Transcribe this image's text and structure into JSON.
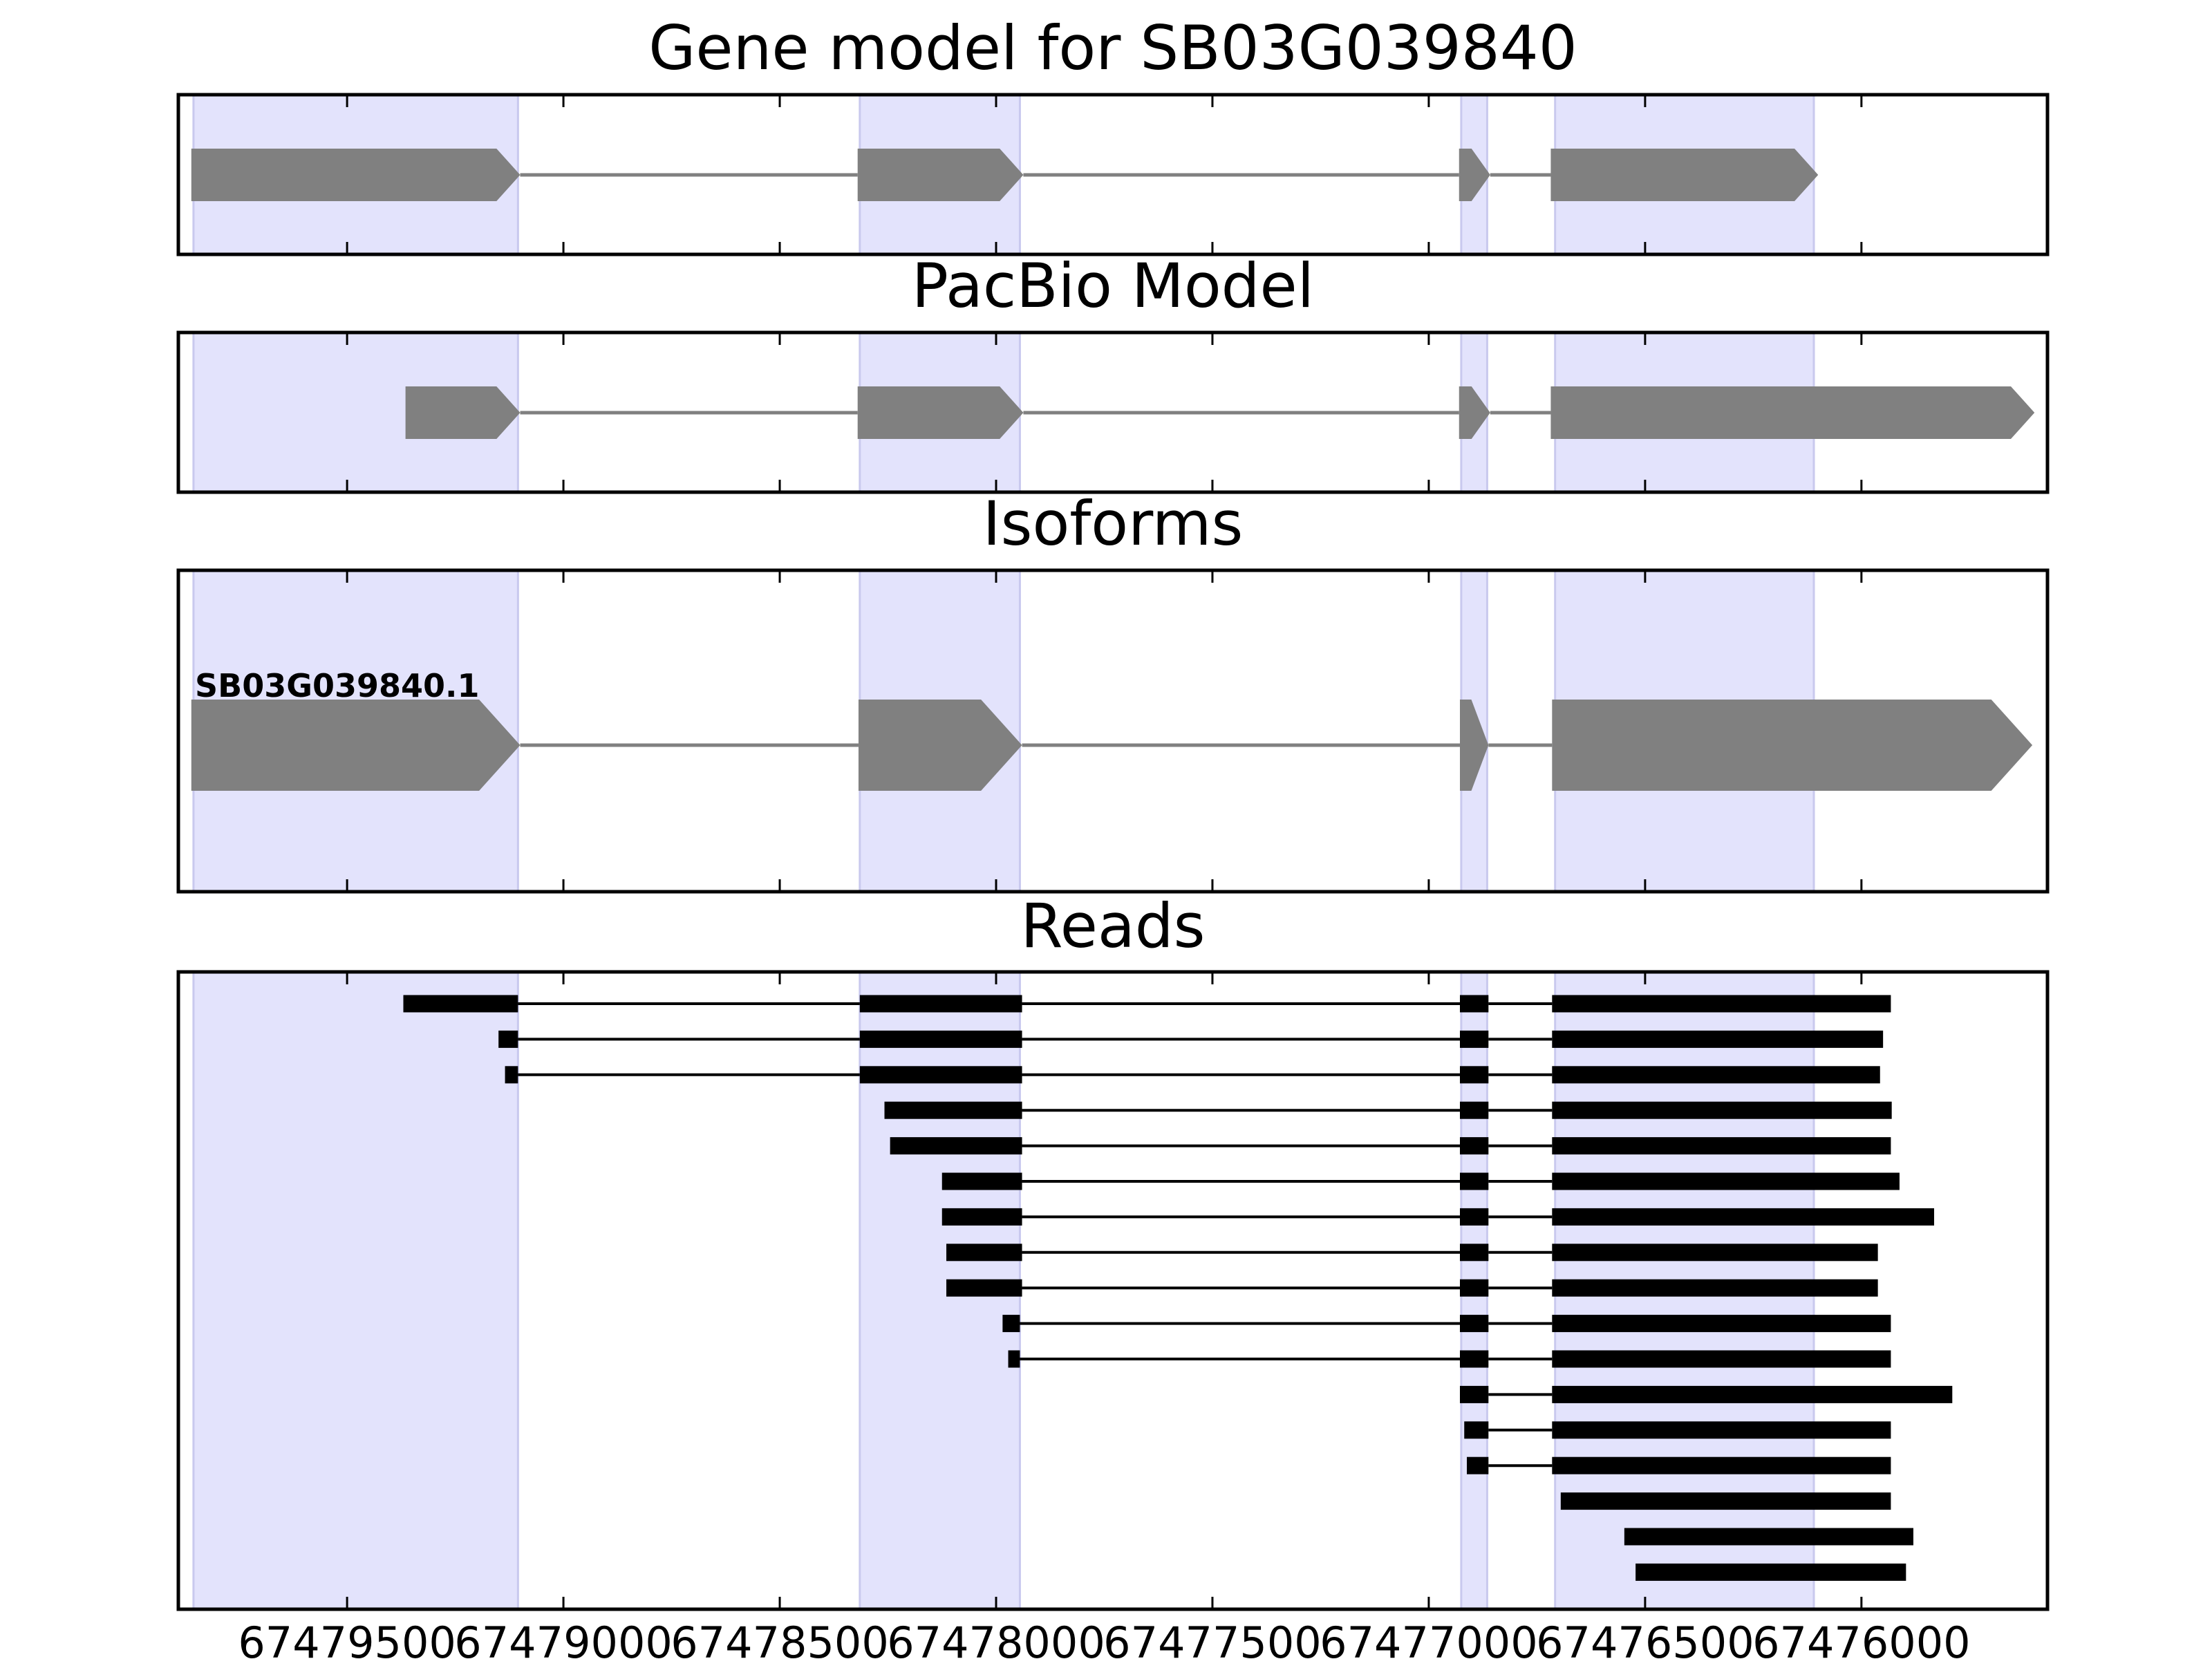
{
  "chart_data": {
    "type": "gene-structure",
    "x_axis": {
      "lim": [
        67479890,
        67475570
      ],
      "inverted": true,
      "ticks": [
        67479500,
        67479000,
        67478500,
        67478000,
        67477500,
        67477000,
        67476500,
        67476000
      ],
      "tick_labels": [
        "67479500",
        "67479000",
        "67478500",
        "67478000",
        "67477500",
        "67477000",
        "67476500",
        "67476000"
      ]
    },
    "colors": {
      "exon_highlight": "#e3e3fc",
      "model_block": "#808080",
      "read_block": "#000000",
      "intron_line_model": "#808080",
      "intron_line_read": "#000000"
    },
    "highlights": [
      [
        67479855,
        67479105
      ],
      [
        67478315,
        67477945
      ],
      [
        67476925,
        67476865
      ],
      [
        67476708,
        67476110
      ]
    ],
    "panels": [
      {
        "title": "Gene model for SB03G039840",
        "kind": "model",
        "exons": [
          [
            67479860,
            67479100
          ],
          [
            67478320,
            67477937
          ],
          [
            67476930,
            67476858
          ],
          [
            67476718,
            67476100
          ]
        ]
      },
      {
        "title": "PacBio Model",
        "kind": "model",
        "exons": [
          [
            67479365,
            67479100
          ],
          [
            67478320,
            67477937
          ],
          [
            67476930,
            67476858
          ],
          [
            67476718,
            67475600
          ]
        ]
      },
      {
        "title": "Isoforms",
        "kind": "isoform",
        "isoform_label": "SB03G039840.1",
        "exons": [
          [
            67479860,
            67479100
          ],
          [
            67478318,
            67477940
          ],
          [
            67476928,
            67476862
          ],
          [
            67476715,
            67475605
          ]
        ]
      },
      {
        "title": "Reads",
        "kind": "reads",
        "reads": [
          [
            [
              67479370,
              67479105
            ],
            [
              67478315,
              67477940
            ],
            [
              67476928,
              67476862
            ],
            [
              67476715,
              67475932
            ]
          ],
          [
            [
              67479150,
              67479105
            ],
            [
              67478315,
              67477940
            ],
            [
              67476928,
              67476862
            ],
            [
              67476715,
              67475950
            ]
          ],
          [
            [
              67479135,
              67479105
            ],
            [
              67478315,
              67477940
            ],
            [
              67476928,
              67476862
            ],
            [
              67476715,
              67475957
            ]
          ],
          [
            [
              67478258,
              67477940
            ],
            [
              67476928,
              67476862
            ],
            [
              67476715,
              67475930
            ]
          ],
          [
            [
              67478245,
              67477940
            ],
            [
              67476928,
              67476862
            ],
            [
              67476715,
              67475932
            ]
          ],
          [
            [
              67478125,
              67477940
            ],
            [
              67476928,
              67476862
            ],
            [
              67476715,
              67475912
            ]
          ],
          [
            [
              67478125,
              67477940
            ],
            [
              67476928,
              67476862
            ],
            [
              67476715,
              67475832
            ]
          ],
          [
            [
              67478115,
              67477940
            ],
            [
              67476928,
              67476862
            ],
            [
              67476715,
              67475962
            ]
          ],
          [
            [
              67478115,
              67477940
            ],
            [
              67476928,
              67476862
            ],
            [
              67476715,
              67475962
            ]
          ],
          [
            [
              67477985,
              67477945
            ],
            [
              67476928,
              67476862
            ],
            [
              67476715,
              67475932
            ]
          ],
          [
            [
              67477972,
              67477945
            ],
            [
              67476928,
              67476862
            ],
            [
              67476715,
              67475932
            ]
          ],
          [
            [
              67476928,
              67476862
            ],
            [
              67476715,
              67475790
            ]
          ],
          [
            [
              67476918,
              67476862
            ],
            [
              67476715,
              67475932
            ]
          ],
          [
            [
              67476912,
              67476862
            ],
            [
              67476715,
              67475932
            ]
          ],
          [
            [
              67476695,
              67475932
            ]
          ],
          [
            [
              67476548,
              67475880
            ]
          ],
          [
            [
              67476522,
              67475897
            ]
          ]
        ]
      }
    ]
  }
}
